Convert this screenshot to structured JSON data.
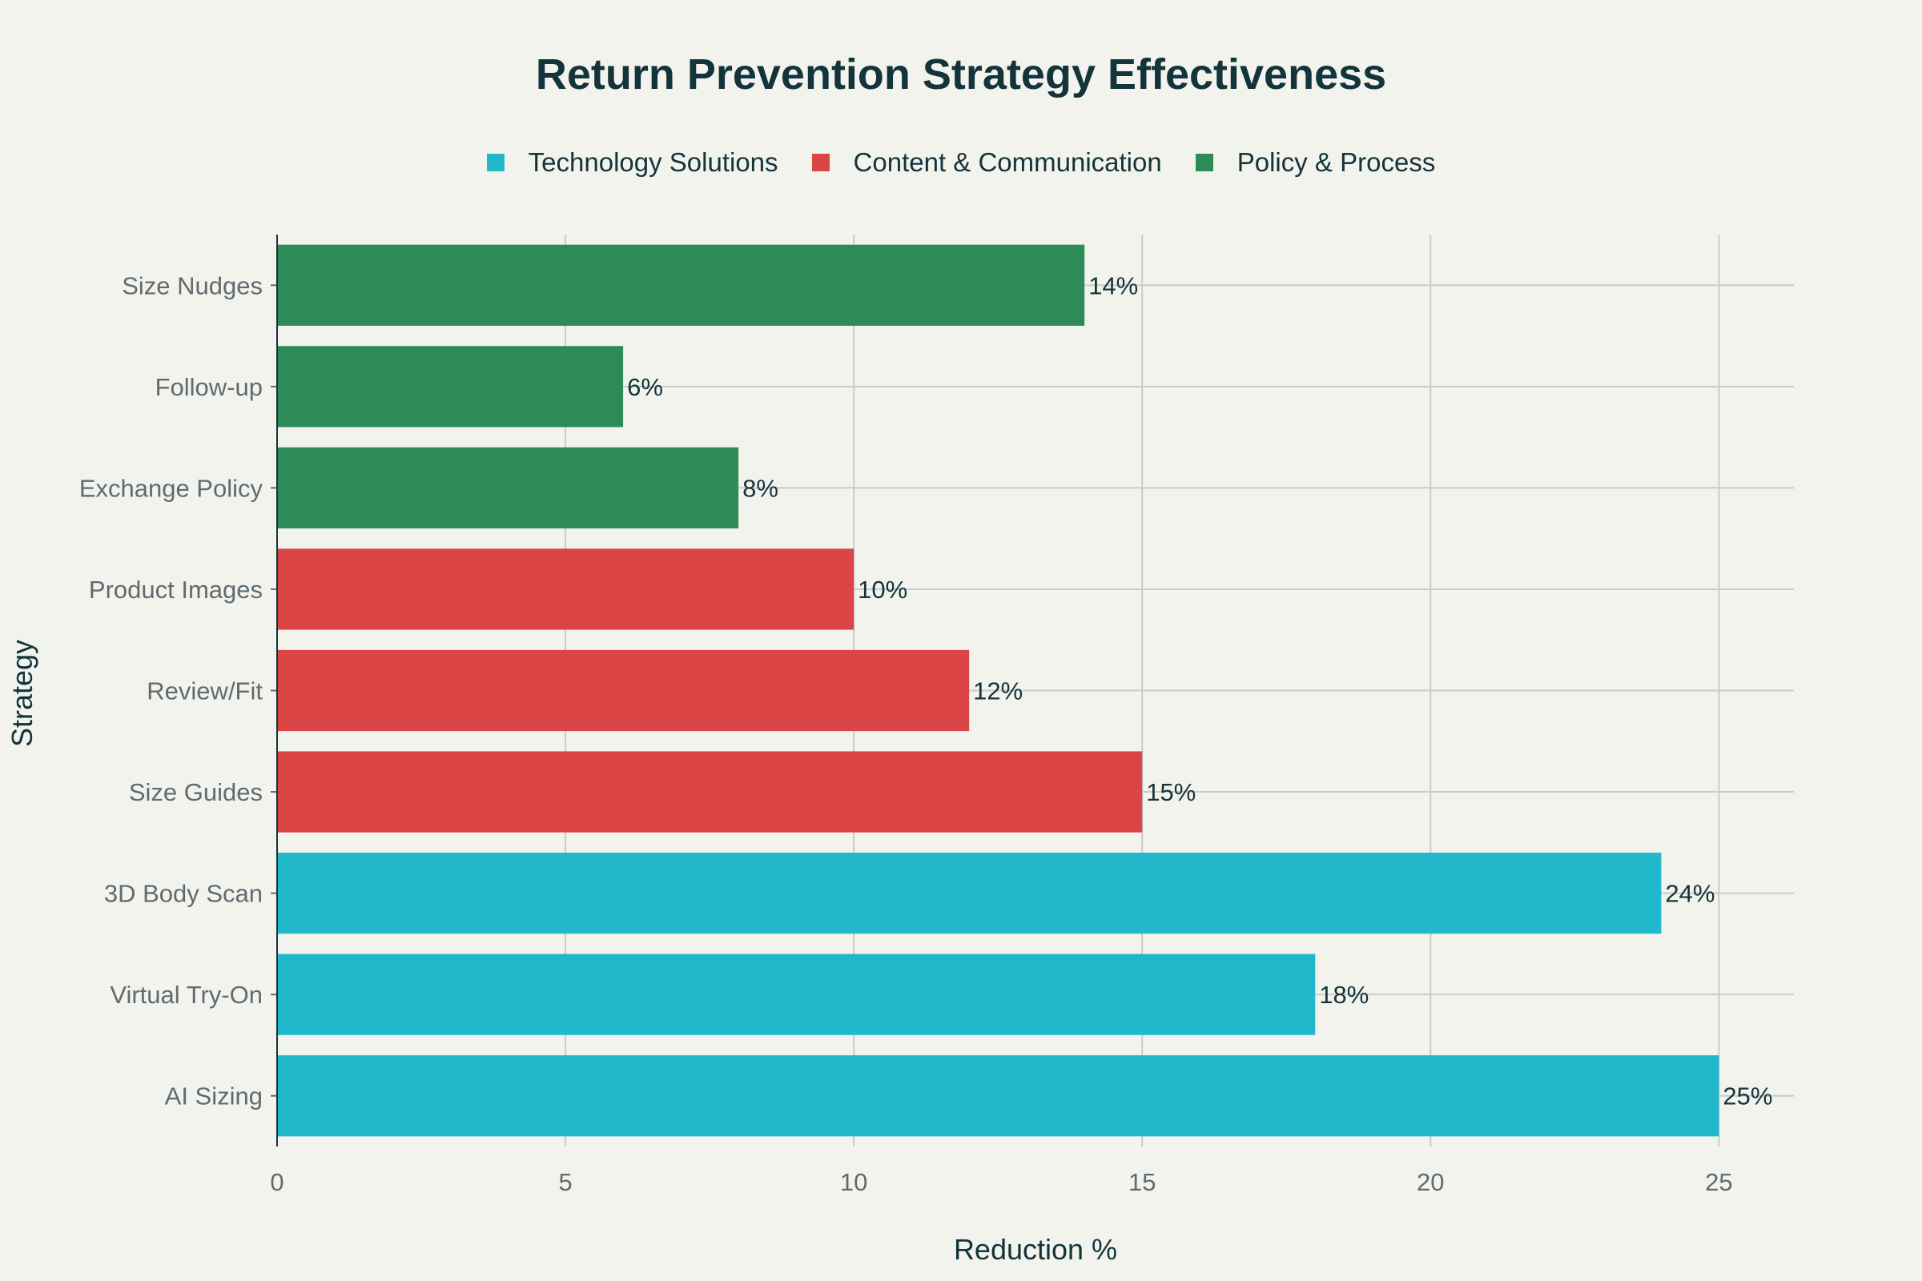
{
  "chart_data": {
    "type": "bar",
    "orientation": "horizontal",
    "title": "Return Prevention Strategy Effectiveness",
    "xlabel": "Reduction %",
    "ylabel": "Strategy",
    "xlim": [
      0,
      26.3
    ],
    "xticks": [
      0,
      5,
      10,
      15,
      20,
      25
    ],
    "grid": true,
    "legend_position": "top-center",
    "value_suffix": "%",
    "legend": [
      {
        "name": "Technology Solutions",
        "color": "#21b8cc"
      },
      {
        "name": "Content & Communication",
        "color": "#db4545"
      },
      {
        "name": "Policy & Process",
        "color": "#2e8b57"
      }
    ],
    "bars": [
      {
        "category": "AI Sizing",
        "value": 25,
        "group": "Technology Solutions"
      },
      {
        "category": "Virtual Try-On",
        "value": 18,
        "group": "Technology Solutions"
      },
      {
        "category": "3D Body Scan",
        "value": 24,
        "group": "Technology Solutions"
      },
      {
        "category": "Size Guides",
        "value": 15,
        "group": "Content & Communication"
      },
      {
        "category": "Review/Fit",
        "value": 12,
        "group": "Content & Communication"
      },
      {
        "category": "Product Images",
        "value": 10,
        "group": "Content & Communication"
      },
      {
        "category": "Exchange Policy",
        "value": 8,
        "group": "Policy & Process"
      },
      {
        "category": "Follow-up",
        "value": 6,
        "group": "Policy & Process"
      },
      {
        "category": "Size Nudges",
        "value": 14,
        "group": "Policy & Process"
      }
    ]
  }
}
